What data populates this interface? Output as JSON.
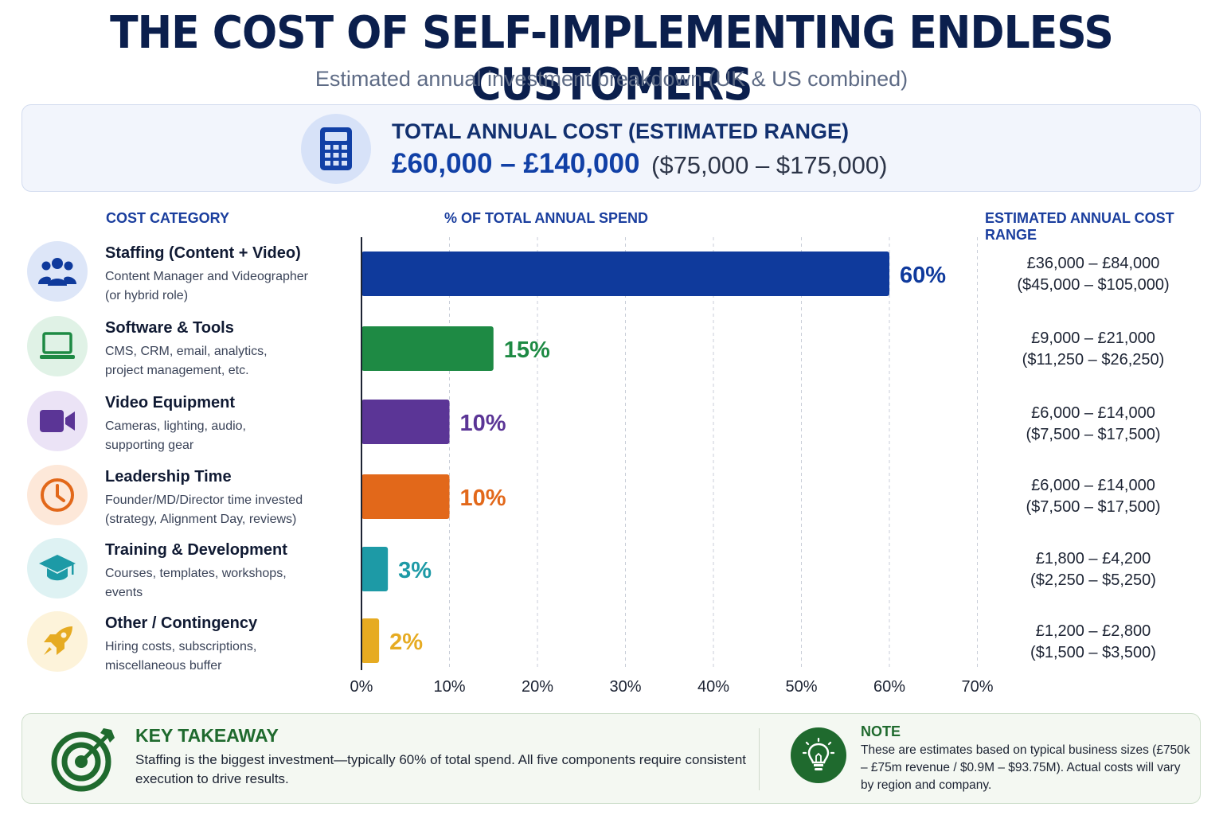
{
  "header": {
    "title": "THE COST OF SELF-IMPLEMENTING ENDLESS CUSTOMERS",
    "subtitle": "Estimated annual investment breakdown (UK & US combined)"
  },
  "total": {
    "icon": "calculator-icon",
    "label": "TOTAL ANNUAL COST (ESTIMATED RANGE)",
    "gbp": "£60,000 – £140,000",
    "usd": "($75,000 – $175,000)"
  },
  "columns": {
    "category": "COST CATEGORY",
    "spend": "% OF TOTAL ANNUAL SPEND",
    "range": "ESTIMATED ANNUAL COST RANGE"
  },
  "categories": [
    {
      "name": "Staffing (Content + Video)",
      "desc1": "Content Manager and Videographer",
      "desc2": "(or hybrid role)",
      "icon": "team-icon",
      "color": "#0f3a9c",
      "bg": "#dde6f8",
      "gbp": "£36,000 – £84,000",
      "usd": "($45,000 – $105,000)"
    },
    {
      "name": "Software & Tools",
      "desc1": "CMS, CRM, email, analytics,",
      "desc2": "project management, etc.",
      "icon": "laptop-icon",
      "color": "#1e8a44",
      "bg": "#e0f2e6",
      "gbp": "£9,000 – £21,000",
      "usd": "($11,250 – $26,250)"
    },
    {
      "name": "Video Equipment",
      "desc1": "Cameras, lighting, audio,",
      "desc2": "supporting gear",
      "icon": "video-camera-icon",
      "color": "#5b3596",
      "bg": "#ebe3f6",
      "gbp": "£6,000 – £14,000",
      "usd": "($7,500 – $17,500)"
    },
    {
      "name": "Leadership Time",
      "desc1": "Founder/MD/Director time invested",
      "desc2": "(strategy, Alignment Day, reviews)",
      "icon": "clock-icon",
      "color": "#e2681a",
      "bg": "#fde8d9",
      "gbp": "£6,000 – £14,000",
      "usd": "($7,500 – $17,500)"
    },
    {
      "name": "Training & Development",
      "desc1": "Courses, templates, workshops,",
      "desc2": "events",
      "icon": "graduation-cap-icon",
      "color": "#1d9aa6",
      "bg": "#def2f3",
      "gbp": "£1,800 – £4,200",
      "usd": "($2,250 – $5,250)"
    },
    {
      "name": "Other / Contingency",
      "desc1": "Hiring costs, subscriptions,",
      "desc2": "miscellaneous buffer",
      "icon": "rocket-icon",
      "color": "#e6ab22",
      "bg": "#fdf3da",
      "gbp": "£1,200 – £2,800",
      "usd": "($1,500 – $3,500)"
    }
  ],
  "chart_data": {
    "type": "bar",
    "orientation": "horizontal",
    "title": "% OF TOTAL ANNUAL SPEND",
    "categories": [
      "Staffing (Content + Video)",
      "Software & Tools",
      "Video Equipment",
      "Leadership Time",
      "Training & Development",
      "Other / Contingency"
    ],
    "values": [
      60,
      15,
      10,
      10,
      3,
      2
    ],
    "value_labels": [
      "60%",
      "15%",
      "10%",
      "10%",
      "3%",
      "2%"
    ],
    "colors": [
      "#0f3a9c",
      "#1e8a44",
      "#5b3596",
      "#e2681a",
      "#1d9aa6",
      "#e6ab22"
    ],
    "xlim": [
      0,
      70
    ],
    "xticks": [
      0,
      10,
      20,
      30,
      40,
      50,
      60,
      70
    ],
    "xtick_labels": [
      "0%",
      "10%",
      "20%",
      "30%",
      "40%",
      "50%",
      "60%",
      "70%"
    ],
    "grid": "vertical dashed",
    "legend": "none"
  },
  "takeaway": {
    "icon": "target-icon",
    "title": "KEY TAKEAWAY",
    "text": "Staffing is the biggest investment—typically 60% of total spend. All five components require consistent execution to drive results."
  },
  "note": {
    "icon": "lightbulb-icon",
    "title": "NOTE",
    "text": "These are estimates based on typical business sizes (£750k – £75m revenue / $0.9M – $93.75M). Actual costs will vary by region and company."
  }
}
